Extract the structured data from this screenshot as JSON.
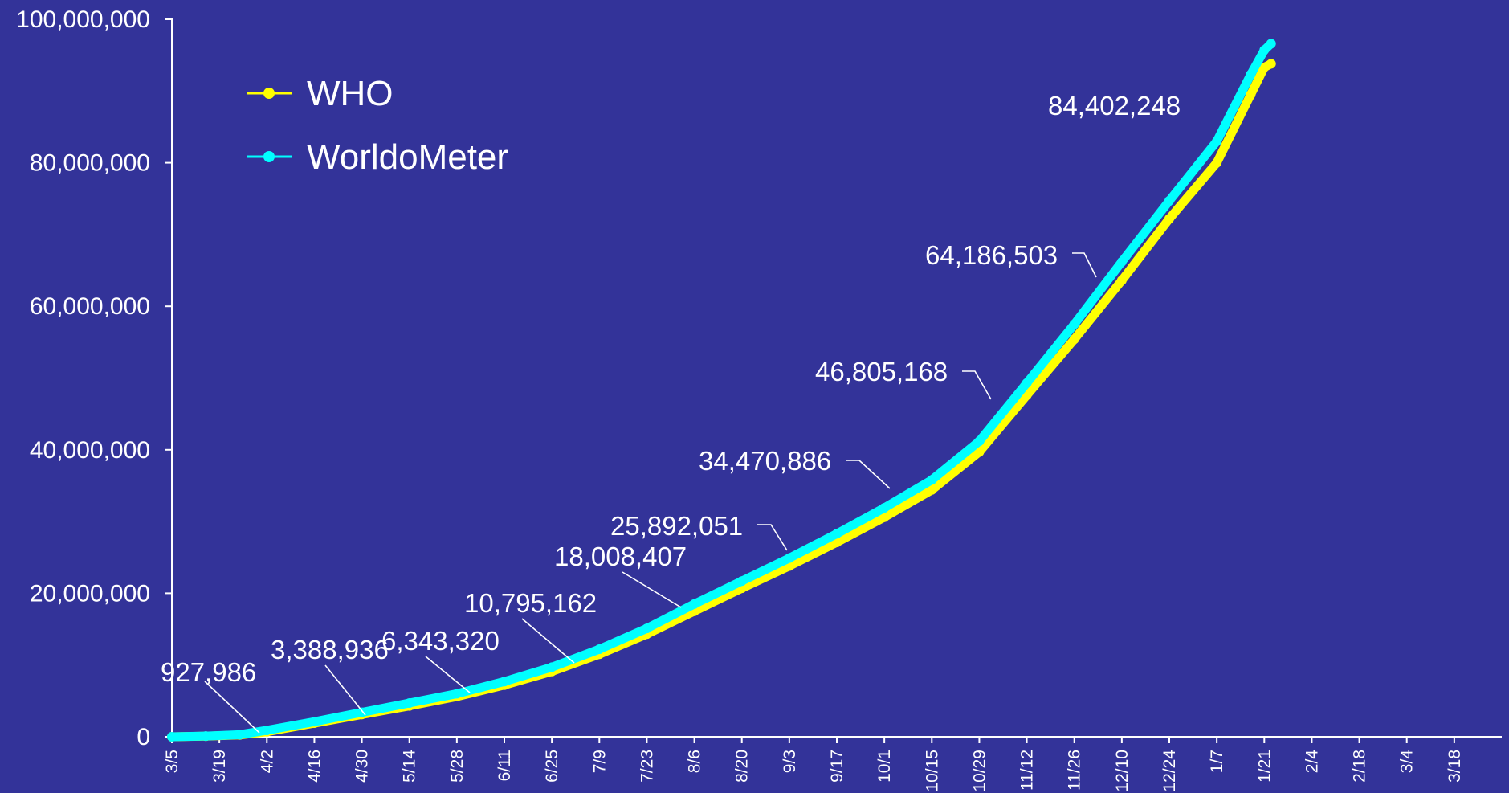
{
  "chart_data": {
    "type": "line",
    "title": "",
    "xlabel": "",
    "ylabel": "",
    "ylim": [
      0,
      100000000
    ],
    "grid": false,
    "legend_position": "top-left",
    "y_ticks": [
      "0",
      "20,000,000",
      "40,000,000",
      "60,000,000",
      "80,000,000",
      "100,000,000"
    ],
    "y_tick_values": [
      0,
      20000000,
      40000000,
      60000000,
      80000000,
      100000000
    ],
    "x_ticks": [
      "3/5",
      "3/19",
      "4/2",
      "4/16",
      "4/30",
      "5/14",
      "5/28",
      "6/11",
      "6/25",
      "7/9",
      "7/23",
      "8/6",
      "8/20",
      "9/3",
      "9/17",
      "10/1",
      "10/15",
      "10/29",
      "11/12",
      "11/26",
      "12/10",
      "12/24",
      "1/7",
      "1/21",
      "2/4",
      "2/18",
      "3/4",
      "3/18"
    ],
    "x_tick_days": [
      0,
      14,
      28,
      42,
      56,
      70,
      84,
      98,
      112,
      126,
      140,
      154,
      168,
      182,
      196,
      210,
      224,
      238,
      252,
      266,
      280,
      294,
      308,
      322,
      336,
      350,
      364,
      378
    ],
    "x_range_days": [
      0,
      392
    ],
    "series": [
      {
        "name": "WHO",
        "color": "#ffff00",
        "points": [
          [
            0,
            0
          ],
          [
            10,
            80000
          ],
          [
            20,
            250000
          ],
          [
            28,
            700000
          ],
          [
            42,
            1900000
          ],
          [
            56,
            3100000
          ],
          [
            70,
            4300000
          ],
          [
            84,
            5600000
          ],
          [
            98,
            7200000
          ],
          [
            112,
            9100000
          ],
          [
            126,
            11500000
          ],
          [
            140,
            14300000
          ],
          [
            154,
            17500000
          ],
          [
            168,
            20700000
          ],
          [
            182,
            23800000
          ],
          [
            196,
            27100000
          ],
          [
            210,
            30600000
          ],
          [
            224,
            34400000
          ],
          [
            238,
            39700000
          ],
          [
            252,
            47600000
          ],
          [
            266,
            55400000
          ],
          [
            280,
            63600000
          ],
          [
            294,
            72200000
          ],
          [
            308,
            80000000
          ],
          [
            318,
            89500000
          ],
          [
            322,
            93300000
          ],
          [
            324,
            93800000
          ]
        ]
      },
      {
        "name": "WorldoMeter",
        "color": "#00ffff",
        "points": [
          [
            0,
            0
          ],
          [
            10,
            100000
          ],
          [
            20,
            300000
          ],
          [
            28,
            900000
          ],
          [
            42,
            2100000
          ],
          [
            56,
            3400000
          ],
          [
            70,
            4700000
          ],
          [
            84,
            6000000
          ],
          [
            98,
            7700000
          ],
          [
            112,
            9700000
          ],
          [
            126,
            12200000
          ],
          [
            140,
            15100000
          ],
          [
            154,
            18500000
          ],
          [
            168,
            21700000
          ],
          [
            182,
            24900000
          ],
          [
            196,
            28300000
          ],
          [
            210,
            31900000
          ],
          [
            224,
            35800000
          ],
          [
            238,
            41200000
          ],
          [
            252,
            49300000
          ],
          [
            266,
            57500000
          ],
          [
            280,
            66200000
          ],
          [
            294,
            74700000
          ],
          [
            308,
            83000000
          ],
          [
            318,
            92300000
          ],
          [
            322,
            95700000
          ],
          [
            324,
            96600000
          ]
        ]
      }
    ],
    "annotations": [
      {
        "label": "927,986",
        "day": 27,
        "value": 927986
      },
      {
        "label": "3,388,936",
        "day": 56,
        "value": 3388936
      },
      {
        "label": "6,343,320",
        "day": 86,
        "value": 6343320
      },
      {
        "label": "10,795,162",
        "day": 118,
        "value": 10795162
      },
      {
        "label": "18,008,407",
        "day": 148,
        "value": 18008407
      },
      {
        "label": "25,892,051",
        "day": 177,
        "value": 25892051
      },
      {
        "label": "34,470,886",
        "day": 208,
        "value": 34470886
      },
      {
        "label": "46,805,168",
        "day": 240,
        "value": 46805168
      },
      {
        "label": "64,186,503",
        "day": 270,
        "value": 64186503
      },
      {
        "label": "84,402,248",
        "day": 300,
        "value": 84402248
      }
    ]
  }
}
